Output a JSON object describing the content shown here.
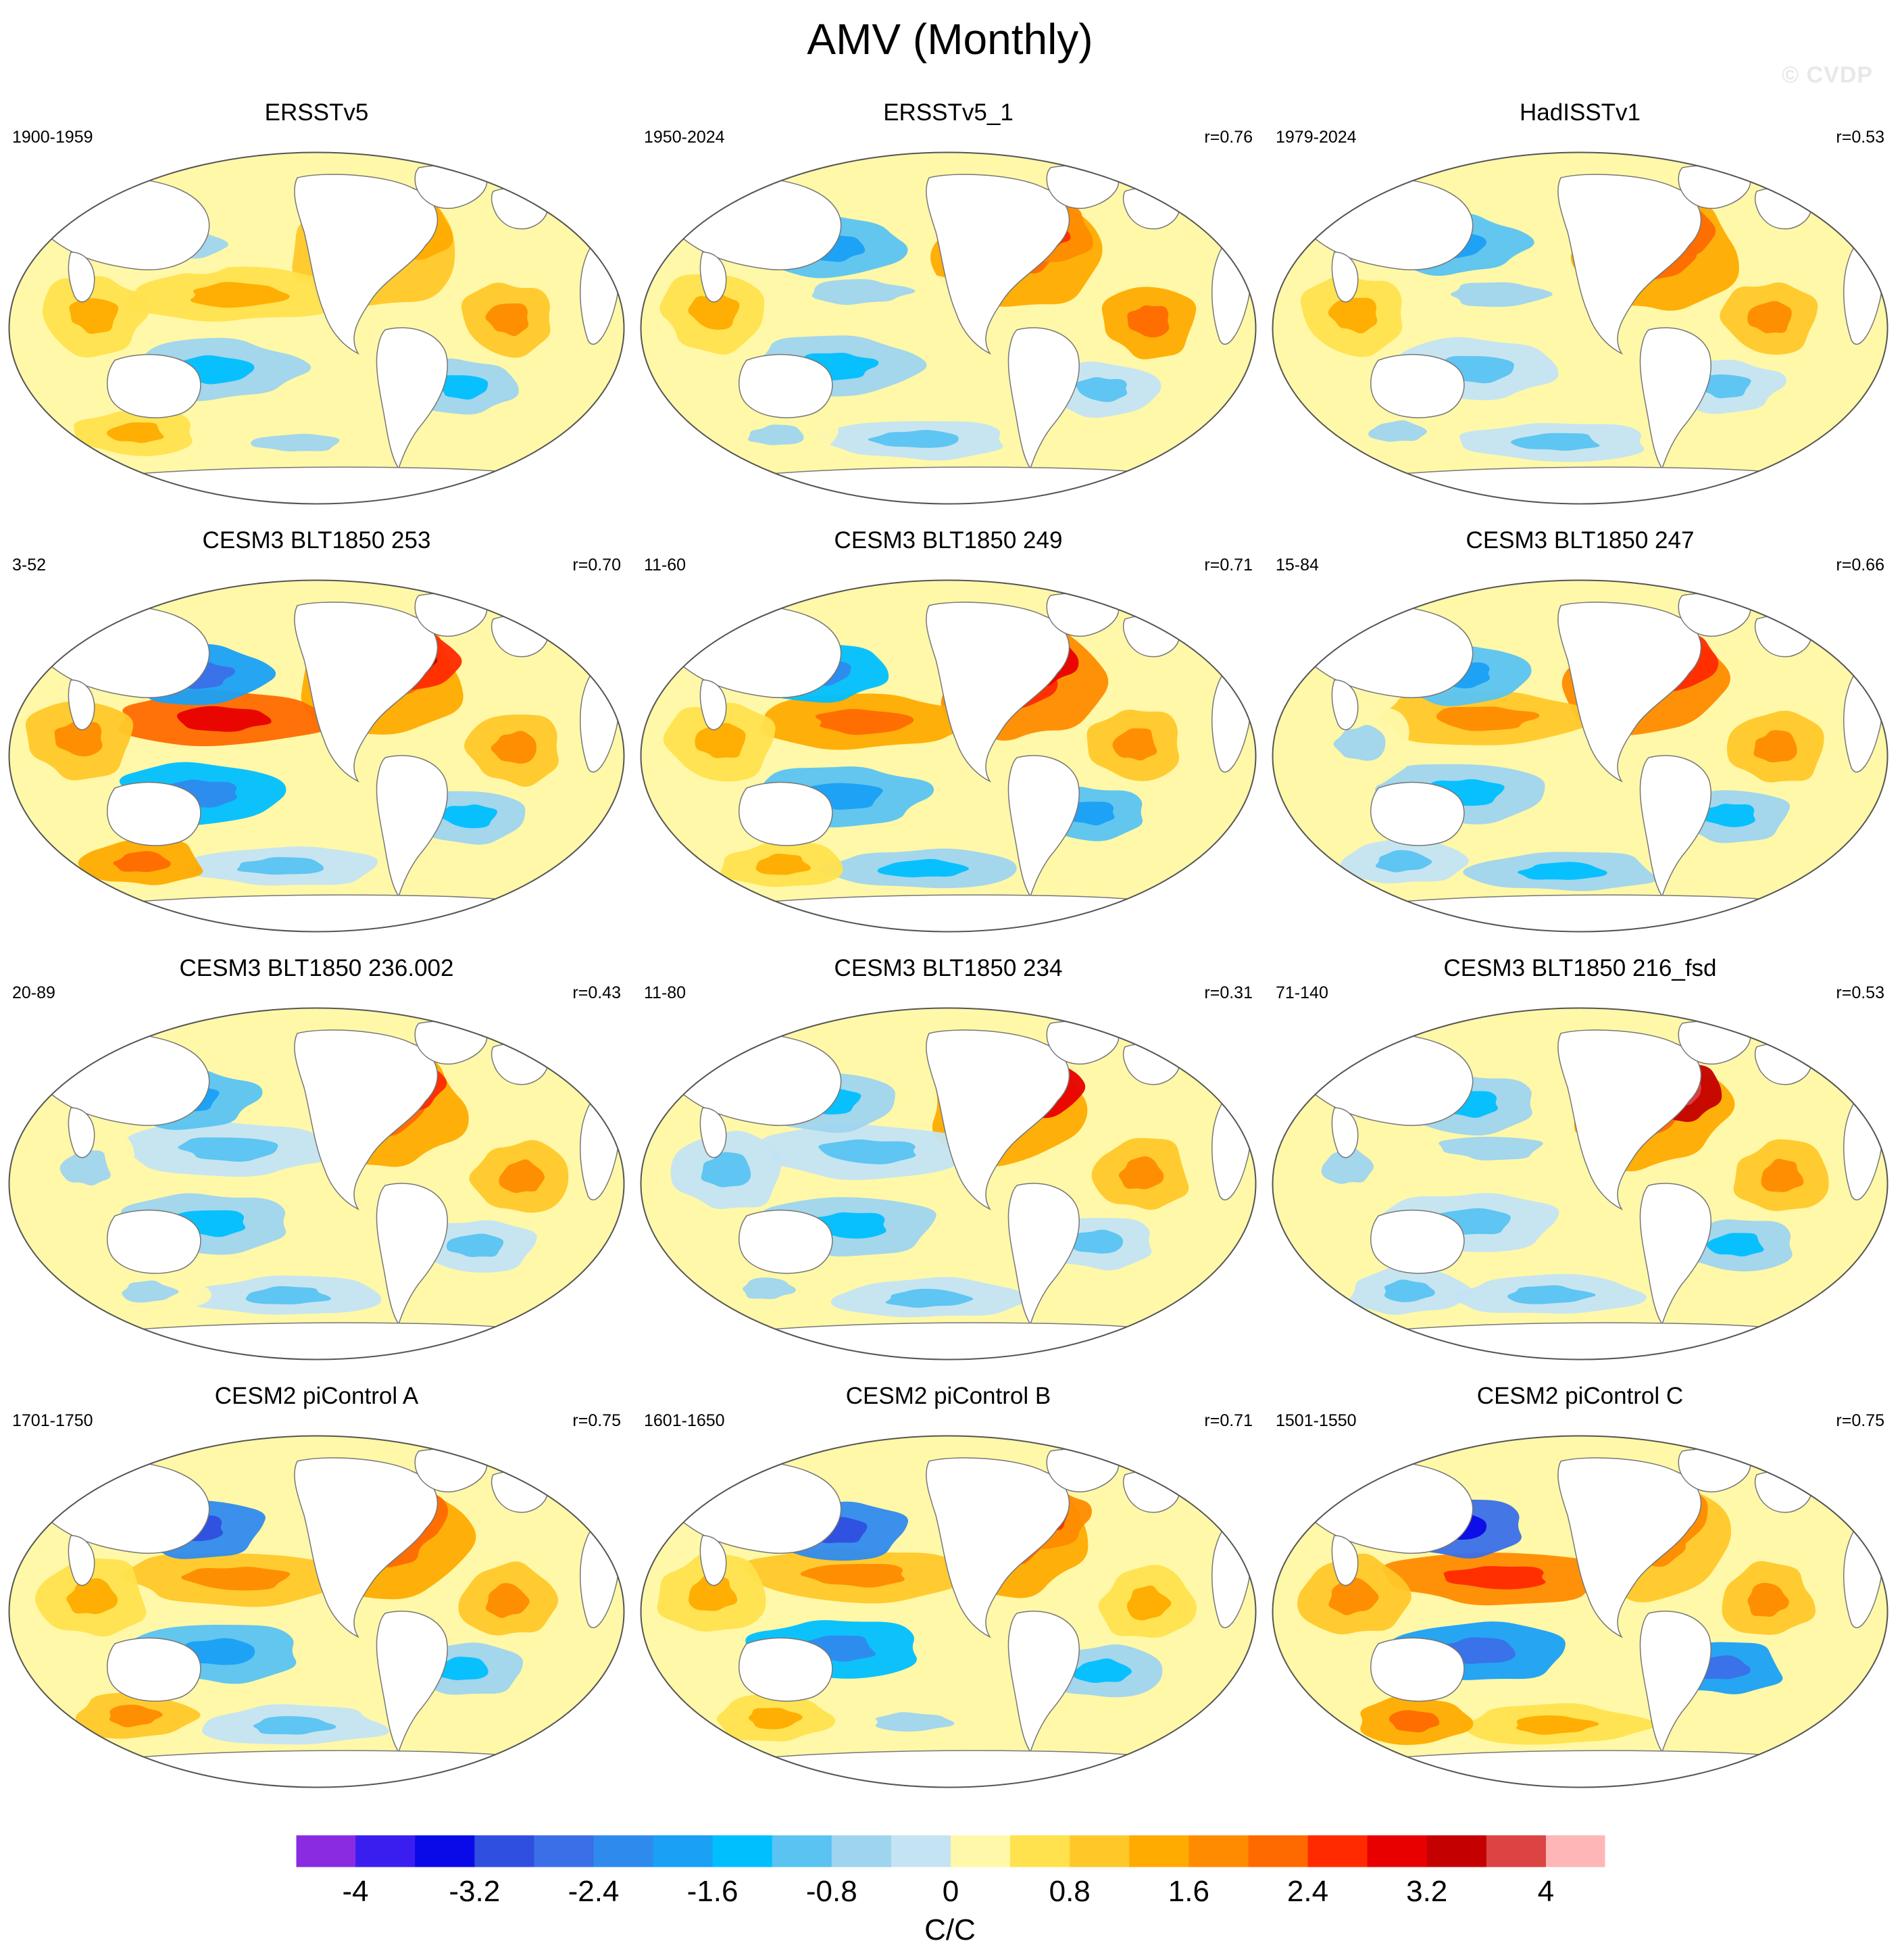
{
  "figure": {
    "title": "AMV (Monthly)",
    "watermark": "© CVDP"
  },
  "panels": [
    {
      "title": "ERSSTv5",
      "period": "1900-1959",
      "corr": "",
      "style": 0
    },
    {
      "title": "ERSSTv5_1",
      "period": "1950-2024",
      "corr": "r=0.76",
      "style": 1
    },
    {
      "title": "HadISSTv1",
      "period": "1979-2024",
      "corr": "r=0.53",
      "style": 2
    },
    {
      "title": "CESM3 BLT1850 253",
      "period": "3-52",
      "corr": "r=0.70",
      "style": 3
    },
    {
      "title": "CESM3 BLT1850 249",
      "period": "11-60",
      "corr": "r=0.71",
      "style": 4
    },
    {
      "title": "CESM3 BLT1850 247",
      "period": "15-84",
      "corr": "r=0.66",
      "style": 5
    },
    {
      "title": "CESM3 BLT1850 236.002",
      "period": "20-89",
      "corr": "r=0.43",
      "style": 6
    },
    {
      "title": "CESM3 BLT1850 234",
      "period": "11-80",
      "corr": "r=0.31",
      "style": 7
    },
    {
      "title": "CESM3 BLT1850 216_fsd",
      "period": "71-140",
      "corr": "r=0.53",
      "style": 8
    },
    {
      "title": "CESM2 piControl A",
      "period": "1701-1750",
      "corr": "r=0.75",
      "style": 9
    },
    {
      "title": "CESM2 piControl B",
      "period": "1601-1650",
      "corr": "r=0.71",
      "style": 10
    },
    {
      "title": "CESM2 piControl C",
      "period": "1501-1550",
      "corr": "r=0.75",
      "style": 11
    }
  ],
  "colorbar": {
    "units": "C/C",
    "colors": [
      "#8a2be2",
      "#3a1ef0",
      "#0a0ae8",
      "#2f4fe0",
      "#3a6fe8",
      "#2f8aee",
      "#1aa0f5",
      "#00bfff",
      "#5ac3f2",
      "#9fd4ef",
      "#c4e4f3",
      "#fff8a8",
      "#ffe24d",
      "#ffc829",
      "#ffab00",
      "#ff8b00",
      "#ff6a00",
      "#ff2a00",
      "#e80000",
      "#c40000",
      "#dc4343",
      "#ffb6b6"
    ],
    "tick_labels": [
      "-4",
      "-3.2",
      "-2.4",
      "-1.6",
      "-0.8",
      "0",
      "0.8",
      "1.6",
      "2.4",
      "3.2",
      "4"
    ]
  }
}
